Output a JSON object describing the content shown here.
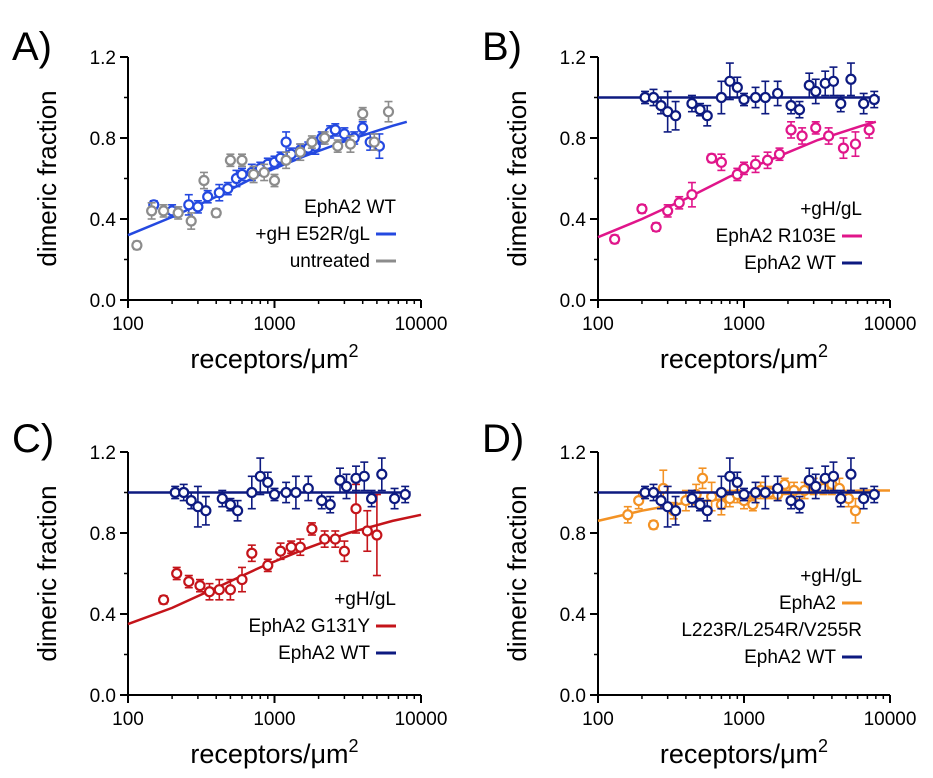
{
  "colors": {
    "blue": "#2449e0",
    "gray": "#8c8c8c",
    "navy": "#0d1a80",
    "magenta": "#e0158a",
    "red": "#c4141a",
    "orange": "#f39224"
  },
  "chart_data": [
    {
      "type": "scatter",
      "panel": "A)",
      "xscale": "log",
      "xlim": [
        100,
        10000
      ],
      "ylim": [
        0,
        1.2
      ],
      "xticks": [
        "100",
        "1000",
        "10000"
      ],
      "yticks": [
        "0.0",
        "0.4",
        "0.8",
        "1.2"
      ],
      "xlabel": "receptors/",
      "xlabel_unit": "μm",
      "xlabel_sup": "2",
      "ylabel": "dimeric fraction",
      "legend_title": [
        "EphA2 WT"
      ],
      "series": [
        {
          "name": "+gH E52R/gL",
          "color": "#2449e0",
          "x": [
            150,
            200,
            260,
            300,
            350,
            420,
            480,
            550,
            600,
            700,
            800,
            900,
            1000,
            1100,
            1200,
            1300,
            1500,
            1700,
            1900,
            2100,
            2400,
            2600,
            3000,
            3500,
            4000,
            4500,
            5200
          ],
          "y": [
            0.47,
            0.44,
            0.47,
            0.46,
            0.51,
            0.53,
            0.55,
            0.6,
            0.62,
            0.63,
            0.65,
            0.67,
            0.68,
            0.7,
            0.78,
            0.72,
            0.74,
            0.75,
            0.76,
            0.8,
            0.83,
            0.84,
            0.82,
            0.8,
            0.85,
            0.78,
            0.76
          ],
          "err": [
            0.02,
            0.03,
            0.05,
            0.03,
            0.03,
            0.04,
            0.03,
            0.04,
            0.03,
            0.04,
            0.03,
            0.03,
            0.03,
            0.03,
            0.05,
            0.03,
            0.03,
            0.03,
            0.04,
            0.03,
            0.03,
            0.03,
            0.03,
            0.03,
            0.03,
            0.04,
            0.06
          ],
          "fit": {
            "type": "line",
            "x": [
              100,
              200,
              400,
              800,
              1600,
              3200,
              6400,
              8000
            ],
            "y": [
              0.32,
              0.41,
              0.51,
              0.62,
              0.71,
              0.79,
              0.86,
              0.88
            ]
          }
        },
        {
          "name": "untreated",
          "color": "#8c8c8c",
          "x": [
            115,
            145,
            175,
            220,
            270,
            330,
            400,
            500,
            600,
            720,
            850,
            1000,
            1200,
            1500,
            1800,
            2200,
            2700,
            3300,
            4000,
            4800,
            6000
          ],
          "y": [
            0.27,
            0.44,
            0.44,
            0.43,
            0.39,
            0.59,
            0.43,
            0.69,
            0.69,
            0.62,
            0.63,
            0.59,
            0.69,
            0.73,
            0.78,
            0.8,
            0.76,
            0.77,
            0.92,
            0.78,
            0.93
          ],
          "err": [
            0.02,
            0.04,
            0.03,
            0.03,
            0.04,
            0.04,
            0.02,
            0.03,
            0.03,
            0.04,
            0.04,
            0.03,
            0.04,
            0.04,
            0.03,
            0.03,
            0.03,
            0.04,
            0.03,
            0.04,
            0.05
          ],
          "fit": null
        }
      ]
    },
    {
      "type": "scatter",
      "panel": "B)",
      "xscale": "log",
      "xlim": [
        100,
        10000
      ],
      "ylim": [
        0,
        1.2
      ],
      "xticks": [
        "100",
        "1000",
        "10000"
      ],
      "yticks": [
        "0.0",
        "0.4",
        "0.8",
        "1.2"
      ],
      "xlabel": "receptors/",
      "xlabel_unit": "μm",
      "xlabel_sup": "2",
      "ylabel": "dimeric fraction",
      "legend_title": [
        "+gH/gL"
      ],
      "series": [
        {
          "name": "EphA2 R103E",
          "color": "#e0158a",
          "x": [
            130,
            200,
            250,
            300,
            360,
            440,
            600,
            700,
            900,
            1000,
            1200,
            1450,
            1750,
            2100,
            2500,
            3100,
            3800,
            4800,
            5800,
            7200
          ],
          "y": [
            0.3,
            0.45,
            0.36,
            0.44,
            0.48,
            0.52,
            0.7,
            0.68,
            0.62,
            0.65,
            0.67,
            0.69,
            0.72,
            0.84,
            0.81,
            0.85,
            0.81,
            0.75,
            0.77,
            0.84
          ],
          "err": [
            0.02,
            0.02,
            0.02,
            0.03,
            0.03,
            0.06,
            0.02,
            0.04,
            0.03,
            0.03,
            0.04,
            0.04,
            0.03,
            0.04,
            0.04,
            0.03,
            0.04,
            0.05,
            0.06,
            0.04
          ],
          "fit": {
            "type": "line",
            "x": [
              100,
              200,
              400,
              800,
              1600,
              3200,
              6400,
              8000
            ],
            "y": [
              0.31,
              0.4,
              0.5,
              0.61,
              0.7,
              0.79,
              0.86,
              0.88
            ]
          }
        },
        {
          "name": "EphA2 WT",
          "color": "#0d1a80",
          "x": [
            210,
            240,
            270,
            300,
            340,
            440,
            500,
            560,
            700,
            800,
            900,
            1000,
            1200,
            1400,
            1700,
            2100,
            2400,
            2800,
            3100,
            3600,
            4100,
            4600,
            5400,
            6600,
            7800
          ],
          "y": [
            1.0,
            1.0,
            0.96,
            0.93,
            0.91,
            0.97,
            0.94,
            0.91,
            1.0,
            1.08,
            1.05,
            0.99,
            1.0,
            1.0,
            1.02,
            0.96,
            0.94,
            1.06,
            1.03,
            1.07,
            1.08,
            0.97,
            1.09,
            0.97,
            0.99
          ],
          "err": [
            0.03,
            0.04,
            0.04,
            0.1,
            0.07,
            0.04,
            0.03,
            0.05,
            0.08,
            0.09,
            0.05,
            0.03,
            0.05,
            0.08,
            0.06,
            0.04,
            0.04,
            0.06,
            0.06,
            0.06,
            0.07,
            0.04,
            0.08,
            0.05,
            0.04
          ],
          "fit": {
            "type": "hline",
            "y": 1.0
          }
        }
      ]
    },
    {
      "type": "scatter",
      "panel": "C)",
      "xscale": "log",
      "xlim": [
        100,
        10000
      ],
      "ylim": [
        0,
        1.2
      ],
      "xticks": [
        "100",
        "1000",
        "10000"
      ],
      "yticks": [
        "0.0",
        "0.4",
        "0.8",
        "1.2"
      ],
      "xlabel": "receptors/",
      "xlabel_unit": "μm",
      "xlabel_sup": "2",
      "ylabel": "dimeric fraction",
      "legend_title": [
        "+gH/gL"
      ],
      "series": [
        {
          "name": "EphA2 G131Y",
          "color": "#c4141a",
          "x": [
            175,
            215,
            260,
            310,
            360,
            420,
            500,
            600,
            700,
            900,
            1100,
            1300,
            1500,
            1800,
            2200,
            2600,
            3000,
            3600,
            4300,
            5000
          ],
          "y": [
            0.47,
            0.6,
            0.56,
            0.54,
            0.51,
            0.52,
            0.52,
            0.57,
            0.7,
            0.64,
            0.71,
            0.73,
            0.73,
            0.82,
            0.77,
            0.77,
            0.71,
            0.92,
            0.81,
            0.79
          ],
          "err": [
            0.02,
            0.03,
            0.03,
            0.03,
            0.04,
            0.05,
            0.05,
            0.06,
            0.04,
            0.03,
            0.04,
            0.03,
            0.04,
            0.03,
            0.04,
            0.04,
            0.05,
            0.12,
            0.1,
            0.2
          ],
          "fit": {
            "type": "line",
            "x": [
              100,
              200,
              400,
              800,
              1600,
              3200,
              6400,
              10000
            ],
            "y": [
              0.35,
              0.43,
              0.53,
              0.63,
              0.72,
              0.8,
              0.86,
              0.89
            ]
          }
        },
        {
          "name": "EphA2 WT",
          "color": "#0d1a80",
          "x": [
            210,
            240,
            270,
            300,
            340,
            440,
            500,
            560,
            700,
            800,
            900,
            1000,
            1200,
            1400,
            1700,
            2100,
            2400,
            2800,
            3100,
            3600,
            4100,
            4600,
            5400,
            6600,
            7800
          ],
          "y": [
            1.0,
            1.0,
            0.96,
            0.93,
            0.91,
            0.97,
            0.94,
            0.91,
            1.0,
            1.08,
            1.05,
            0.99,
            1.0,
            1.0,
            1.02,
            0.96,
            0.94,
            1.06,
            1.03,
            1.07,
            1.08,
            0.97,
            1.09,
            0.97,
            0.99
          ],
          "err": [
            0.03,
            0.04,
            0.04,
            0.1,
            0.07,
            0.04,
            0.03,
            0.05,
            0.08,
            0.09,
            0.05,
            0.03,
            0.05,
            0.08,
            0.06,
            0.04,
            0.04,
            0.06,
            0.06,
            0.06,
            0.07,
            0.04,
            0.08,
            0.05,
            0.04
          ],
          "fit": {
            "type": "hline",
            "y": 1.0
          }
        }
      ]
    },
    {
      "type": "scatter",
      "panel": "D)",
      "xscale": "log",
      "xlim": [
        100,
        10000
      ],
      "ylim": [
        0,
        1.2
      ],
      "xticks": [
        "100",
        "1000",
        "10000"
      ],
      "yticks": [
        "0.0",
        "0.4",
        "0.8",
        "1.2"
      ],
      "xlabel": "receptors/",
      "xlabel_unit": "μm",
      "xlabel_sup": "2",
      "ylabel": "dimeric fraction",
      "legend_title": [
        "+gH/gL"
      ],
      "series": [
        {
          "name": "EphA2",
          "name_line2": "L223R/L254R/V255R",
          "color": "#f39224",
          "x": [
            160,
            190,
            240,
            280,
            330,
            400,
            470,
            520,
            600,
            700,
            800,
            900,
            1000,
            1150,
            1300,
            1500,
            1700,
            1900,
            2200,
            2600,
            3000,
            3500,
            4000,
            4500,
            5200,
            5800
          ],
          "y": [
            0.89,
            0.96,
            0.84,
            1.02,
            0.91,
            0.96,
            0.99,
            1.07,
            0.98,
            0.94,
            0.97,
            0.99,
            0.96,
            0.94,
            1.01,
            1.0,
            0.99,
            1.04,
            1.01,
            1.01,
            1.03,
            1.02,
            1.04,
            1.02,
            0.97,
            0.91
          ],
          "err": [
            0.04,
            0.04,
            0.02,
            0.09,
            0.04,
            0.05,
            0.05,
            0.05,
            0.07,
            0.05,
            0.04,
            0.04,
            0.04,
            0.03,
            0.04,
            0.03,
            0.03,
            0.03,
            0.04,
            0.04,
            0.04,
            0.03,
            0.05,
            0.05,
            0.04,
            0.06
          ],
          "fit": {
            "type": "line",
            "x": [
              100,
              200,
              400,
              800,
              1600,
              3200,
              6400,
              10000
            ],
            "y": [
              0.86,
              0.91,
              0.95,
              0.97,
              0.99,
              1.0,
              1.01,
              1.01
            ]
          }
        },
        {
          "name": "EphA2 WT",
          "color": "#0d1a80",
          "x": [
            210,
            240,
            270,
            300,
            340,
            440,
            500,
            560,
            700,
            800,
            900,
            1000,
            1200,
            1400,
            1700,
            2100,
            2400,
            2800,
            3100,
            3600,
            4100,
            4600,
            5400,
            6600,
            7800
          ],
          "y": [
            1.0,
            1.0,
            0.96,
            0.93,
            0.91,
            0.97,
            0.94,
            0.91,
            1.0,
            1.08,
            1.05,
            0.99,
            1.0,
            1.0,
            1.02,
            0.96,
            0.94,
            1.06,
            1.03,
            1.07,
            1.08,
            0.97,
            1.09,
            0.97,
            0.99
          ],
          "err": [
            0.03,
            0.04,
            0.04,
            0.1,
            0.07,
            0.04,
            0.03,
            0.05,
            0.08,
            0.09,
            0.05,
            0.03,
            0.05,
            0.08,
            0.06,
            0.04,
            0.04,
            0.06,
            0.06,
            0.06,
            0.07,
            0.04,
            0.08,
            0.05,
            0.04
          ],
          "fit": {
            "type": "hline",
            "y": 1.0
          }
        }
      ]
    }
  ]
}
